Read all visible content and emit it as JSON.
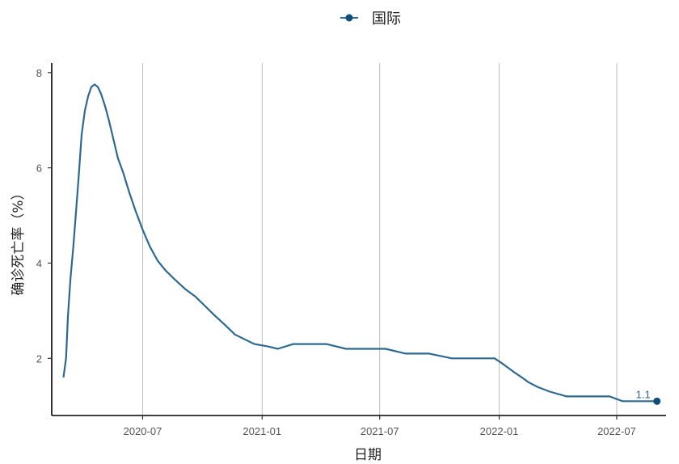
{
  "chart_data": {
    "type": "line",
    "xlabel": "日期",
    "ylabel": "确诊死亡率（%）",
    "ylim": [
      0.8,
      8.2
    ],
    "y_ticks": [
      2,
      4,
      6,
      8
    ],
    "x_ticks": [
      "2020-07",
      "2021-01",
      "2021-07",
      "2022-01",
      "2022-07"
    ],
    "xlim": [
      "2020-02-12",
      "2022-09-15"
    ],
    "grid": "vertical-major",
    "legend_position": "top",
    "color": "#2e6a8f",
    "end_point_color": "#0e4f7a",
    "end_label": "1.1",
    "series": [
      {
        "name": "国际",
        "points": [
          [
            "2020-03-01",
            1.6
          ],
          [
            "2020-03-05",
            2.0
          ],
          [
            "2020-03-08",
            2.9
          ],
          [
            "2020-03-12",
            3.7
          ],
          [
            "2020-03-16",
            4.3
          ],
          [
            "2020-03-20",
            5.0
          ],
          [
            "2020-03-25",
            5.9
          ],
          [
            "2020-03-29",
            6.7
          ],
          [
            "2020-04-03",
            7.2
          ],
          [
            "2020-04-08",
            7.5
          ],
          [
            "2020-04-13",
            7.7
          ],
          [
            "2020-04-18",
            7.75
          ],
          [
            "2020-04-23",
            7.7
          ],
          [
            "2020-04-28",
            7.55
          ],
          [
            "2020-05-04",
            7.3
          ],
          [
            "2020-05-10",
            7.0
          ],
          [
            "2020-05-17",
            6.6
          ],
          [
            "2020-05-24",
            6.2
          ],
          [
            "2020-06-01",
            5.9
          ],
          [
            "2020-06-10",
            5.5
          ],
          [
            "2020-06-20",
            5.1
          ],
          [
            "2020-07-01",
            4.7
          ],
          [
            "2020-07-12",
            4.35
          ],
          [
            "2020-07-24",
            4.05
          ],
          [
            "2020-08-05",
            3.85
          ],
          [
            "2020-08-20",
            3.65
          ],
          [
            "2020-09-05",
            3.45
          ],
          [
            "2020-09-20",
            3.3
          ],
          [
            "2020-10-05",
            3.1
          ],
          [
            "2020-10-20",
            2.9
          ],
          [
            "2020-11-05",
            2.7
          ],
          [
            "2020-11-20",
            2.5
          ],
          [
            "2020-12-05",
            2.4
          ],
          [
            "2020-12-20",
            2.3
          ],
          [
            "2021-01-10",
            2.25
          ],
          [
            "2021-01-25",
            2.2
          ],
          [
            "2021-02-18",
            2.3
          ],
          [
            "2021-03-15",
            2.3
          ],
          [
            "2021-04-10",
            2.3
          ],
          [
            "2021-05-10",
            2.2
          ],
          [
            "2021-06-10",
            2.2
          ],
          [
            "2021-07-10",
            2.2
          ],
          [
            "2021-08-10",
            2.1
          ],
          [
            "2021-09-15",
            2.1
          ],
          [
            "2021-10-20",
            2.0
          ],
          [
            "2021-11-20",
            2.0
          ],
          [
            "2021-12-25",
            2.0
          ],
          [
            "2022-01-05",
            1.9
          ],
          [
            "2022-01-15",
            1.8
          ],
          [
            "2022-01-25",
            1.7
          ],
          [
            "2022-02-05",
            1.6
          ],
          [
            "2022-02-15",
            1.5
          ],
          [
            "2022-03-01",
            1.4
          ],
          [
            "2022-03-20",
            1.3
          ],
          [
            "2022-04-15",
            1.2
          ],
          [
            "2022-05-15",
            1.2
          ],
          [
            "2022-06-20",
            1.2
          ],
          [
            "2022-07-10",
            1.1
          ],
          [
            "2022-08-15",
            1.1
          ],
          [
            "2022-09-01",
            1.1
          ]
        ]
      }
    ]
  }
}
